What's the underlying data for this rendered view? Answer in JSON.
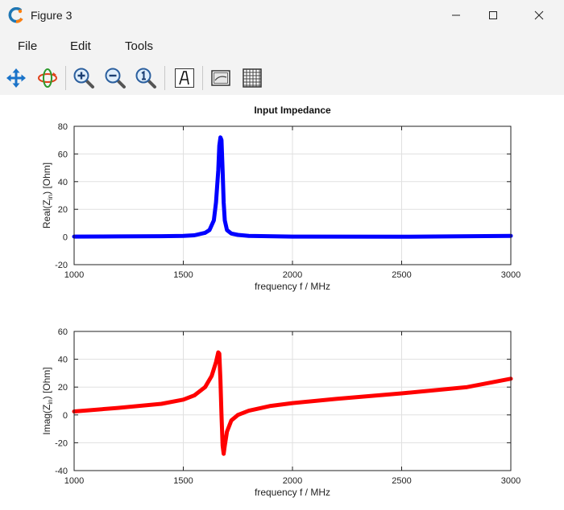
{
  "window": {
    "title": "Figure 3"
  },
  "menu": {
    "file": "File",
    "edit": "Edit",
    "tools": "Tools"
  },
  "toolbar": {
    "tools": [
      "pan-icon",
      "rotate-3d-icon",
      "zoom-in-icon",
      "zoom-out-icon",
      "zoom-reset-icon",
      "text-icon",
      "legend-icon",
      "grid-icon"
    ]
  },
  "colors": {
    "series_top": "#0000ff",
    "series_bottom": "#ff0000",
    "grid": "#e0e0e0"
  },
  "chart_data": [
    {
      "type": "line",
      "title": "Input Impedance",
      "xlabel": "frequency f / MHz",
      "ylabel": "Real(Z_in) [Ohm]",
      "xlim": [
        1000,
        3000
      ],
      "ylim": [
        -20,
        80
      ],
      "xticks": [
        "1000",
        "1500",
        "2000",
        "2500",
        "3000"
      ],
      "yticks": [
        "80",
        "60",
        "40",
        "20",
        "0",
        "-20"
      ],
      "grid": true,
      "series": [
        {
          "color": "#0000ff",
          "x": [
            1000,
            1200,
            1400,
            1500,
            1550,
            1600,
            1620,
            1640,
            1650,
            1660,
            1665,
            1670,
            1675,
            1680,
            1685,
            1690,
            1700,
            1720,
            1750,
            1800,
            2000,
            2500,
            3000
          ],
          "y": [
            0.3,
            0.4,
            0.6,
            0.8,
            1.2,
            3,
            5,
            12,
            25,
            48,
            66,
            72,
            70,
            48,
            25,
            12,
            5,
            2.5,
            1.5,
            0.8,
            0.3,
            0.2,
            0.8
          ]
        }
      ]
    },
    {
      "type": "line",
      "title": "",
      "xlabel": "frequency f / MHz",
      "ylabel": "Imag(Z_in) [Ohm]",
      "xlim": [
        1000,
        3000
      ],
      "ylim": [
        -40,
        60
      ],
      "xticks": [
        "1000",
        "1500",
        "2000",
        "2500",
        "3000"
      ],
      "yticks": [
        "60",
        "40",
        "20",
        "0",
        "-20",
        "-40"
      ],
      "grid": true,
      "series": [
        {
          "color": "#ff0000",
          "x": [
            1000,
            1200,
            1400,
            1500,
            1550,
            1600,
            1630,
            1650,
            1660,
            1665,
            1670,
            1675,
            1680,
            1685,
            1690,
            1700,
            1720,
            1750,
            1800,
            1900,
            2000,
            2200,
            2500,
            2800,
            3000
          ],
          "y": [
            2.5,
            5,
            8,
            11,
            14,
            20,
            28,
            38,
            45,
            44,
            25,
            0,
            -22,
            -28,
            -22,
            -12,
            -4,
            0,
            3,
            6.5,
            8.5,
            11.5,
            15.5,
            20,
            26
          ]
        }
      ]
    }
  ]
}
